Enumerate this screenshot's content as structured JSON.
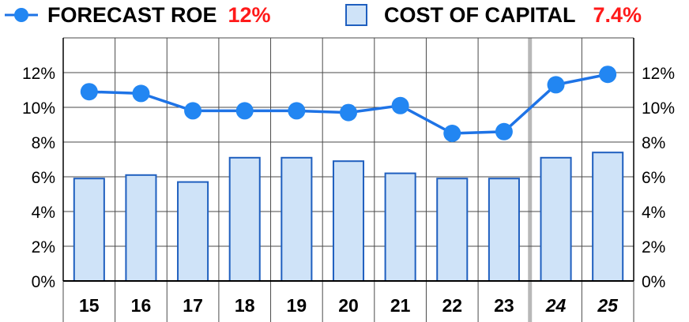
{
  "legend": {
    "roe_label": "FORECAST ROE",
    "roe_value": "12%",
    "coc_label": "COST OF CAPITAL",
    "coc_value": "7.4%",
    "value_color": "#ff1a1a"
  },
  "colors": {
    "line": "#1e73e6",
    "marker": "#2286f2",
    "bar_fill": "#cfe3f8",
    "bar_stroke": "#1f5fbf",
    "grid": "#4a4a4a",
    "forecast_divider": "#b8b8b8"
  },
  "chart_data": {
    "type": "bar",
    "categories": [
      "15",
      "16",
      "17",
      "18",
      "19",
      "20",
      "21",
      "22",
      "23",
      "24",
      "25"
    ],
    "forecast_categories": [
      "24",
      "25"
    ],
    "series": [
      {
        "name": "FORECAST ROE",
        "type": "line",
        "values": [
          10.9,
          10.8,
          9.8,
          9.8,
          9.8,
          9.7,
          10.1,
          8.5,
          8.6,
          11.3,
          11.9
        ]
      },
      {
        "name": "COST OF CAPITAL",
        "type": "bar",
        "values": [
          5.9,
          6.1,
          5.7,
          7.1,
          7.1,
          6.9,
          6.2,
          5.9,
          5.9,
          7.1,
          7.4
        ]
      }
    ],
    "ylim": [
      0,
      14
    ],
    "yticks": [
      "0%",
      "2%",
      "4%",
      "6%",
      "8%",
      "10%",
      "12%"
    ],
    "ytick_values": [
      0,
      2,
      4,
      6,
      8,
      10,
      12
    ],
    "grid": true,
    "legend_position": "top",
    "title": "",
    "xlabel": "",
    "ylabel": ""
  }
}
